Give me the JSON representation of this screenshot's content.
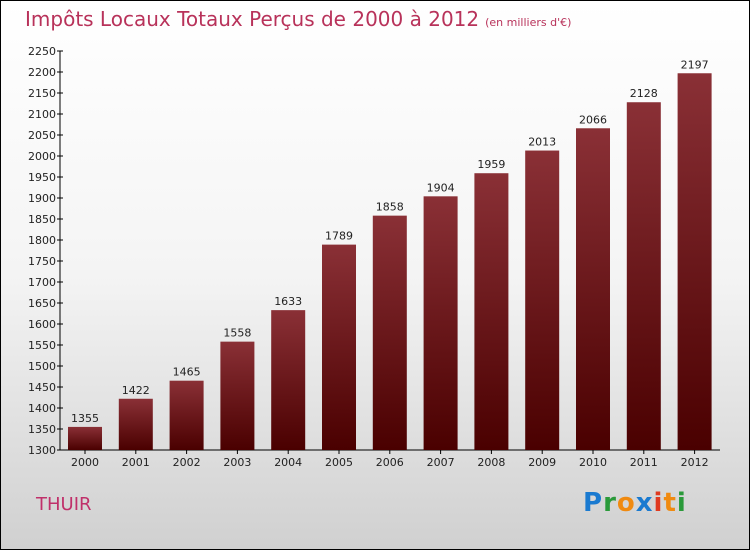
{
  "chart_data": {
    "type": "bar",
    "title": "Impôts Locaux Totaux Perçus de 2000 à 2012",
    "unit": "(en milliers d'€)",
    "categories": [
      "2000",
      "2001",
      "2002",
      "2003",
      "2004",
      "2005",
      "2006",
      "2007",
      "2008",
      "2009",
      "2010",
      "2011",
      "2012"
    ],
    "values": [
      1355,
      1422,
      1465,
      1558,
      1633,
      1789,
      1858,
      1904,
      1959,
      2013,
      2066,
      2128,
      2197
    ],
    "ylim": [
      1300,
      2250
    ],
    "ytick_step": 50,
    "xlabel": "",
    "ylabel": ""
  },
  "location": "THUIR",
  "logo": "Proxiti",
  "colors": {
    "bar_top": "#8a3036",
    "bar_bottom": "#4a0000",
    "title": "#b8325a"
  }
}
